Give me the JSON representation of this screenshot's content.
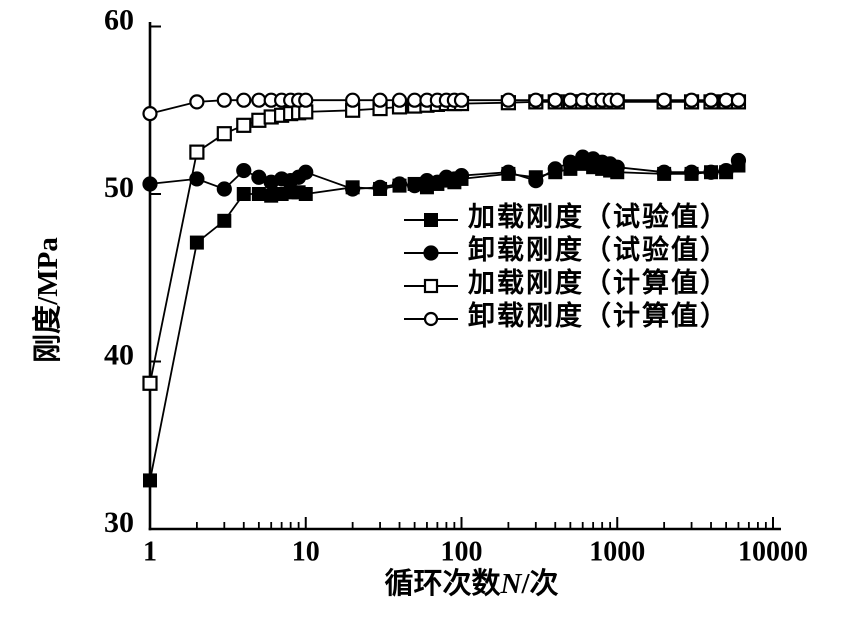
{
  "figure": {
    "background_color": "#ffffff",
    "ink_color": "#000000"
  },
  "chart_data": {
    "type": "line",
    "title": "",
    "xlabel_parts": {
      "prefix": "循环次数",
      "variable": "N",
      "suffix": "/次"
    },
    "ylabel": "刚度/MPa",
    "x_scale": "log",
    "y_scale": "linear",
    "xlim": [
      1,
      10000
    ],
    "ylim": [
      30,
      60
    ],
    "x_ticks": [
      1,
      10,
      100,
      1000,
      10000
    ],
    "x_tick_labels": [
      "1",
      "10",
      "100",
      "1000",
      "10000"
    ],
    "y_ticks": [
      30,
      40,
      50,
      60
    ],
    "y_tick_labels": [
      "30",
      "40",
      "50",
      "60"
    ],
    "grid": false,
    "legend_position": "inside-center-right",
    "x": [
      1,
      2,
      3,
      4,
      5,
      6,
      7,
      8,
      9,
      10,
      20,
      30,
      40,
      50,
      60,
      70,
      80,
      90,
      100,
      200,
      300,
      400,
      500,
      600,
      700,
      800,
      900,
      1000,
      2000,
      3000,
      4000,
      5000,
      6000
    ],
    "series": [
      {
        "key": "loading-test",
        "name": "加载刚度（试验值）",
        "marker": "square",
        "fill": "filled",
        "values": [
          32.9,
          47.1,
          48.4,
          50.0,
          50.0,
          49.9,
          50.0,
          50.1,
          50.1,
          50.0,
          50.4,
          50.3,
          50.5,
          50.6,
          50.4,
          50.6,
          50.8,
          50.7,
          50.9,
          51.2,
          51.0,
          51.3,
          51.5,
          51.8,
          51.6,
          51.5,
          51.4,
          51.3,
          51.2,
          51.2,
          51.3,
          51.3,
          51.7
        ]
      },
      {
        "key": "unloading-test",
        "name": "卸载刚度（试验值）",
        "marker": "circle",
        "fill": "filled",
        "values": [
          50.6,
          50.9,
          50.3,
          51.4,
          51.0,
          50.7,
          50.9,
          50.8,
          51.0,
          51.3,
          50.3,
          50.4,
          50.6,
          50.5,
          50.8,
          50.7,
          51.0,
          50.9,
          51.1,
          51.3,
          50.8,
          51.5,
          51.9,
          52.2,
          52.1,
          51.9,
          51.8,
          51.6,
          51.3,
          51.3,
          51.3,
          51.4,
          52.0
        ]
      },
      {
        "key": "loading-calc",
        "name": "加载刚度（计算值）",
        "marker": "square",
        "fill": "open",
        "values": [
          38.7,
          52.5,
          53.6,
          54.1,
          54.4,
          54.6,
          54.7,
          54.8,
          54.85,
          54.9,
          55.0,
          55.1,
          55.2,
          55.25,
          55.3,
          55.35,
          55.4,
          55.4,
          55.4,
          55.45,
          55.5,
          55.5,
          55.5,
          55.5,
          55.5,
          55.5,
          55.5,
          55.5,
          55.5,
          55.5,
          55.5,
          55.5,
          55.5
        ]
      },
      {
        "key": "unloading-calc",
        "name": "卸载刚度（计算值）",
        "marker": "circle",
        "fill": "open",
        "values": [
          54.8,
          55.5,
          55.6,
          55.6,
          55.6,
          55.6,
          55.6,
          55.6,
          55.6,
          55.6,
          55.6,
          55.6,
          55.6,
          55.6,
          55.6,
          55.6,
          55.6,
          55.6,
          55.6,
          55.6,
          55.6,
          55.6,
          55.6,
          55.6,
          55.6,
          55.6,
          55.6,
          55.6,
          55.6,
          55.6,
          55.6,
          55.6,
          55.6
        ]
      }
    ]
  }
}
